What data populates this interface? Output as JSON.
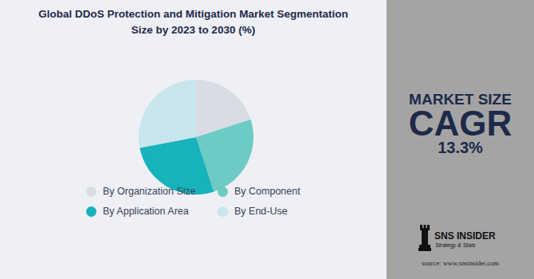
{
  "chart_data": {
    "type": "pie",
    "title": "Global DDoS Protection and Mitigation Market Segmentation Size by 2023 to 2030 (%)",
    "categories": [
      "By Organization Size",
      "By Component",
      "By Application Area",
      "By End-Use"
    ],
    "values": [
      20,
      25,
      27,
      28
    ],
    "colors": [
      "#d9dde3",
      "#6ccbc3",
      "#17b3bb",
      "#c8e6ec"
    ],
    "legend": "bottom",
    "annotations": [
      "MARKET SIZE",
      "CAGR",
      "13.3%",
      "SNS INSIDER",
      "Strategy & Stats",
      "source: www.snsinsider.com"
    ]
  }
}
